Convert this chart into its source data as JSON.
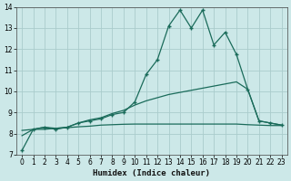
{
  "xlabel": "Humidex (Indice chaleur)",
  "bg_color": "#cce8e8",
  "grid_color": "#aacccc",
  "line_color": "#1a6b5a",
  "xlim_min": -0.5,
  "xlim_max": 23.5,
  "ylim_min": 7,
  "ylim_max": 14,
  "yticks": [
    7,
    8,
    9,
    10,
    11,
    12,
    13,
    14
  ],
  "xticks": [
    0,
    1,
    2,
    3,
    4,
    5,
    6,
    7,
    8,
    9,
    10,
    11,
    12,
    13,
    14,
    15,
    16,
    17,
    18,
    19,
    20,
    21,
    22,
    23
  ],
  "line1_x": [
    0,
    1,
    2,
    3,
    4,
    5,
    6,
    7,
    8,
    9,
    10,
    11,
    12,
    13,
    14,
    15,
    16,
    17,
    18,
    19,
    20,
    21,
    22,
    23
  ],
  "line1_y": [
    7.2,
    8.2,
    8.3,
    8.2,
    8.3,
    8.5,
    8.6,
    8.7,
    8.9,
    9.0,
    9.5,
    10.8,
    11.5,
    13.1,
    13.85,
    13.0,
    13.85,
    12.2,
    12.8,
    11.75,
    10.1,
    8.6,
    8.5,
    8.4
  ],
  "line2_x": [
    0,
    1,
    2,
    3,
    4,
    5,
    6,
    7,
    8,
    9,
    10,
    11,
    12,
    13,
    14,
    15,
    16,
    17,
    18,
    19,
    20,
    21,
    22,
    23
  ],
  "line2_y": [
    7.9,
    8.2,
    8.3,
    8.25,
    8.3,
    8.5,
    8.65,
    8.75,
    8.95,
    9.1,
    9.35,
    9.55,
    9.7,
    9.85,
    9.95,
    10.05,
    10.15,
    10.25,
    10.35,
    10.45,
    10.1,
    8.6,
    8.5,
    8.4
  ],
  "line3_x": [
    0,
    1,
    2,
    3,
    4,
    5,
    6,
    7,
    8,
    9,
    10,
    11,
    12,
    13,
    14,
    15,
    16,
    17,
    18,
    19,
    20,
    21,
    22,
    23
  ],
  "line3_y": [
    8.15,
    8.2,
    8.2,
    8.25,
    8.28,
    8.32,
    8.35,
    8.4,
    8.42,
    8.44,
    8.45,
    8.45,
    8.45,
    8.45,
    8.45,
    8.45,
    8.45,
    8.45,
    8.45,
    8.45,
    8.42,
    8.4,
    8.38,
    8.38
  ]
}
